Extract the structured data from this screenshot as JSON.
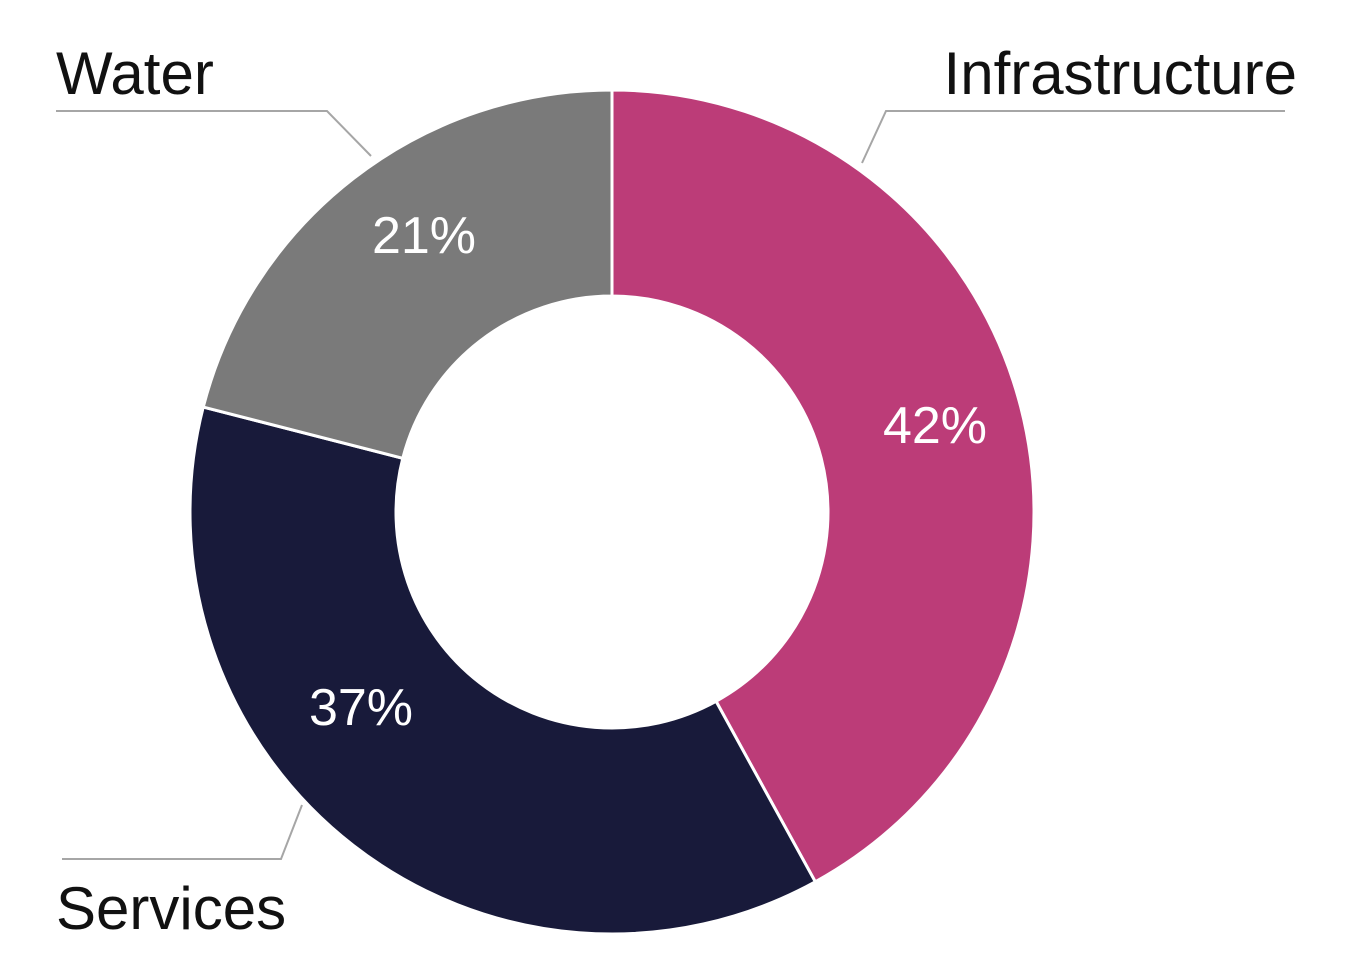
{
  "chart_data": {
    "type": "pie",
    "variant": "donut",
    "categories": [
      "Infrastructure",
      "Services",
      "Water"
    ],
    "values": [
      42,
      37,
      21
    ],
    "value_labels": [
      "42%",
      "37%",
      "21%"
    ],
    "colors": [
      "#bc3c78",
      "#181a3a",
      "#7a7a7a"
    ],
    "start": "12 o'clock",
    "direction": "clockwise",
    "legend": "none"
  }
}
